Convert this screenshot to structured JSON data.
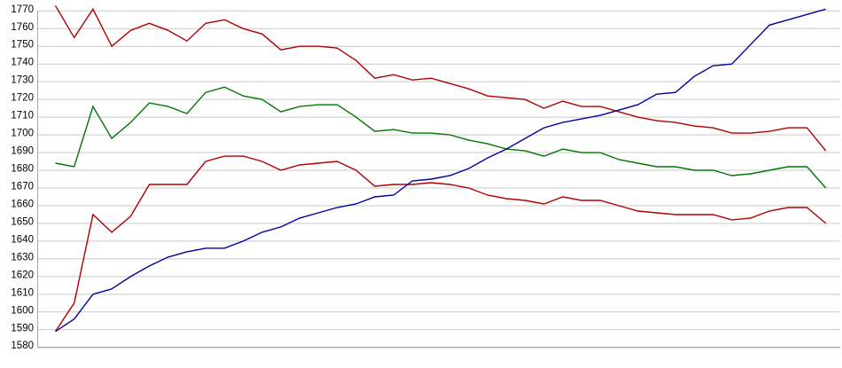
{
  "page": {
    "background": "#ffffff"
  },
  "chart_data": {
    "type": "line",
    "title": "",
    "xlabel": "",
    "ylabel": "",
    "x_labels_shown": false,
    "x_count": 42,
    "x": [
      0,
      1,
      2,
      3,
      4,
      5,
      6,
      7,
      8,
      9,
      10,
      11,
      12,
      13,
      14,
      15,
      16,
      17,
      18,
      19,
      20,
      21,
      22,
      23,
      24,
      25,
      26,
      27,
      28,
      29,
      30,
      31,
      32,
      33,
      34,
      35,
      36,
      37,
      38,
      39,
      40,
      41
    ],
    "ylim": [
      1580,
      1770
    ],
    "y_tick_step": 10,
    "y_tick_labels": [
      "1770",
      "1760",
      "1750",
      "1740",
      "1730",
      "1720",
      "1710",
      "1700",
      "1690",
      "1680",
      "1670",
      "1660",
      "1650",
      "1640",
      "1630",
      "1620",
      "1610",
      "1600",
      "1590",
      "1580"
    ],
    "grid": "horizontal-only",
    "legend": "none",
    "colors": {
      "grid_line": "#c9c9c9",
      "axis_line": "#a6a6a6",
      "tick_label": "#000000",
      "red_series": "#b00000",
      "green_series": "#007800",
      "blue_series": "#0000a0"
    },
    "series": [
      {
        "name": "red-upper-line",
        "color_key": "red_series",
        "values": [
          1773,
          1755,
          1771,
          1750,
          1759,
          1763,
          1759,
          1753,
          1763,
          1765,
          1760,
          1757,
          1748,
          1750,
          1750,
          1749,
          1742,
          1732,
          1734,
          1731,
          1732,
          1729,
          1726,
          1722,
          1721,
          1720,
          1715,
          1719,
          1716,
          1716,
          1713,
          1710,
          1708,
          1707,
          1705,
          1704,
          1701,
          1701,
          1702,
          1704,
          1704,
          1691
        ]
      },
      {
        "name": "green-line",
        "color_key": "green_series",
        "values": [
          1684,
          1682,
          1716,
          1698,
          1707,
          1718,
          1716,
          1712,
          1724,
          1727,
          1722,
          1720,
          1713,
          1716,
          1717,
          1717,
          1710,
          1702,
          1703,
          1701,
          1701,
          1700,
          1697,
          1695,
          1692,
          1691,
          1688,
          1692,
          1690,
          1690,
          1686,
          1684,
          1682,
          1682,
          1680,
          1680,
          1677,
          1678,
          1680,
          1682,
          1682,
          1670
        ]
      },
      {
        "name": "red-lower-line",
        "color_key": "red_series",
        "values": [
          1589,
          1605,
          1655,
          1645,
          1654,
          1672,
          1672,
          1672,
          1685,
          1688,
          1688,
          1685,
          1680,
          1683,
          1684,
          1685,
          1680,
          1671,
          1672,
          1672,
          1673,
          1672,
          1670,
          1666,
          1664,
          1663,
          1661,
          1665,
          1663,
          1663,
          1660,
          1657,
          1656,
          1655,
          1655,
          1655,
          1652,
          1653,
          1657,
          1659,
          1659,
          1650
        ]
      },
      {
        "name": "blue-line",
        "color_key": "blue_series",
        "values": [
          1589,
          1596,
          1610,
          1613,
          1620,
          1626,
          1631,
          1634,
          1636,
          1636,
          1640,
          1645,
          1648,
          1653,
          1656,
          1659,
          1661,
          1665,
          1666,
          1674,
          1675,
          1677,
          1681,
          1687,
          1692,
          1698,
          1704,
          1707,
          1709,
          1711,
          1714,
          1717,
          1723,
          1724,
          1733,
          1739,
          1740,
          1751,
          1762,
          1765,
          1768,
          1771
        ]
      }
    ]
  }
}
